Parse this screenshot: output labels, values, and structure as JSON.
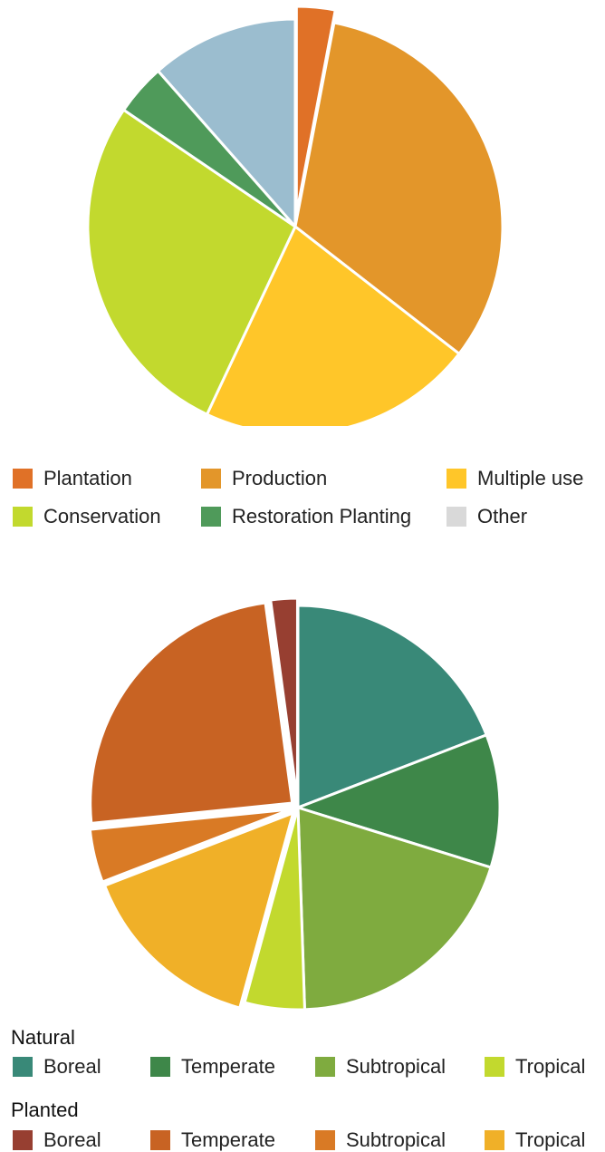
{
  "chart_data": [
    {
      "type": "pie",
      "slices": [
        {
          "label": "Plantation",
          "value": 3.0,
          "color": "#E07127",
          "exploded": true
        },
        {
          "label": "Production",
          "value": 32.5,
          "color": "#E3962A",
          "exploded": false
        },
        {
          "label": "Multiple use",
          "value": 21.5,
          "color": "#FFC629",
          "exploded": false
        },
        {
          "label": "Conservation",
          "value": 27.5,
          "color": "#C2D92E",
          "exploded": false
        },
        {
          "label": "Restoration Planting",
          "value": 4.0,
          "color": "#4F9A5A",
          "exploded": false
        },
        {
          "label": "",
          "value": 11.5,
          "color": "#9BBDCF",
          "exploded": false
        }
      ],
      "legend": [
        {
          "label": "Plantation",
          "color": "#E07127"
        },
        {
          "label": "Production",
          "color": "#E3962A"
        },
        {
          "label": "Multiple use",
          "color": "#FFC629"
        },
        {
          "label": "Conservation",
          "color": "#C2D92E"
        },
        {
          "label": "Restoration Planting",
          "color": "#4F9A5A"
        },
        {
          "label": "Other",
          "color": "#D9D9D9"
        }
      ],
      "legend_position": "bottom"
    },
    {
      "type": "pie",
      "slices": [
        {
          "label": "Boreal",
          "group": "Natural",
          "value": 18.0,
          "color": "#398978"
        },
        {
          "label": "Temperate",
          "group": "Natural",
          "value": 10.0,
          "color": "#3E8749"
        },
        {
          "label": "Subtropical",
          "group": "Natural",
          "value": 18.5,
          "color": "#7FAB3F"
        },
        {
          "label": "Tropical",
          "group": "Natural",
          "value": 4.5,
          "color": "#C2D92E"
        },
        {
          "label": "Tropical",
          "group": "Planted",
          "value": 14.0,
          "color": "#F0B028"
        },
        {
          "label": "Subtropical",
          "group": "Planted",
          "value": 4.0,
          "color": "#D97A25"
        },
        {
          "label": "Temperate",
          "group": "Planted",
          "value": 23.0,
          "color": "#C86323"
        },
        {
          "label": "Boreal",
          "group": "Planted",
          "value": 2.0,
          "color": "#973F31"
        }
      ],
      "legend": {
        "natural_title": "Natural",
        "natural": [
          {
            "label": "Boreal",
            "color": "#398978"
          },
          {
            "label": "Temperate",
            "color": "#3E8749"
          },
          {
            "label": "Subtropical",
            "color": "#7FAB3F"
          },
          {
            "label": "Tropical",
            "color": "#C2D92E"
          }
        ],
        "planted_title": "Planted",
        "planted": [
          {
            "label": "Boreal",
            "color": "#973F31"
          },
          {
            "label": "Temperate",
            "color": "#C86323"
          },
          {
            "label": "Subtropical",
            "color": "#D97A25"
          },
          {
            "label": "Tropical",
            "color": "#F0B028"
          }
        ]
      },
      "legend_position": "bottom"
    }
  ]
}
